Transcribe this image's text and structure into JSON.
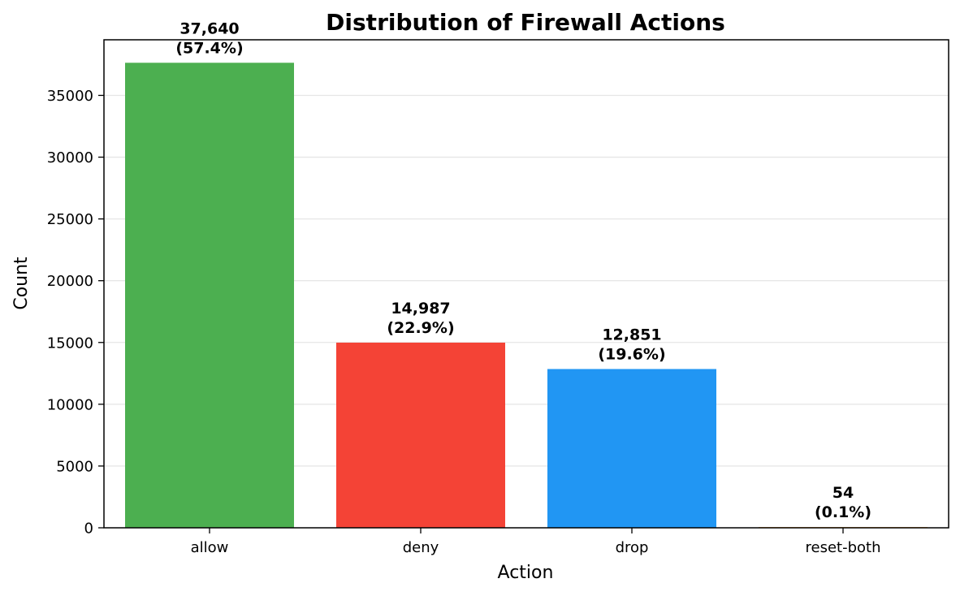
{
  "chart_data": {
    "type": "bar",
    "title": "Distribution of Firewall Actions",
    "xlabel": "Action",
    "ylabel": "Count",
    "categories": [
      "allow",
      "deny",
      "drop",
      "reset-both"
    ],
    "values": [
      37640,
      14987,
      12851,
      54
    ],
    "value_labels": [
      "37,640",
      "14,987",
      "12,851",
      "54"
    ],
    "percent_labels": [
      "(57.4%)",
      "(22.9%)",
      "(19.6%)",
      "(0.1%)"
    ],
    "colors": [
      "#4caf50",
      "#f44336",
      "#2196f3",
      "#ff9800"
    ],
    "ylim": [
      0,
      39500
    ],
    "yticks": [
      0,
      5000,
      10000,
      15000,
      20000,
      25000,
      30000,
      35000
    ],
    "grid": "horizontal"
  }
}
